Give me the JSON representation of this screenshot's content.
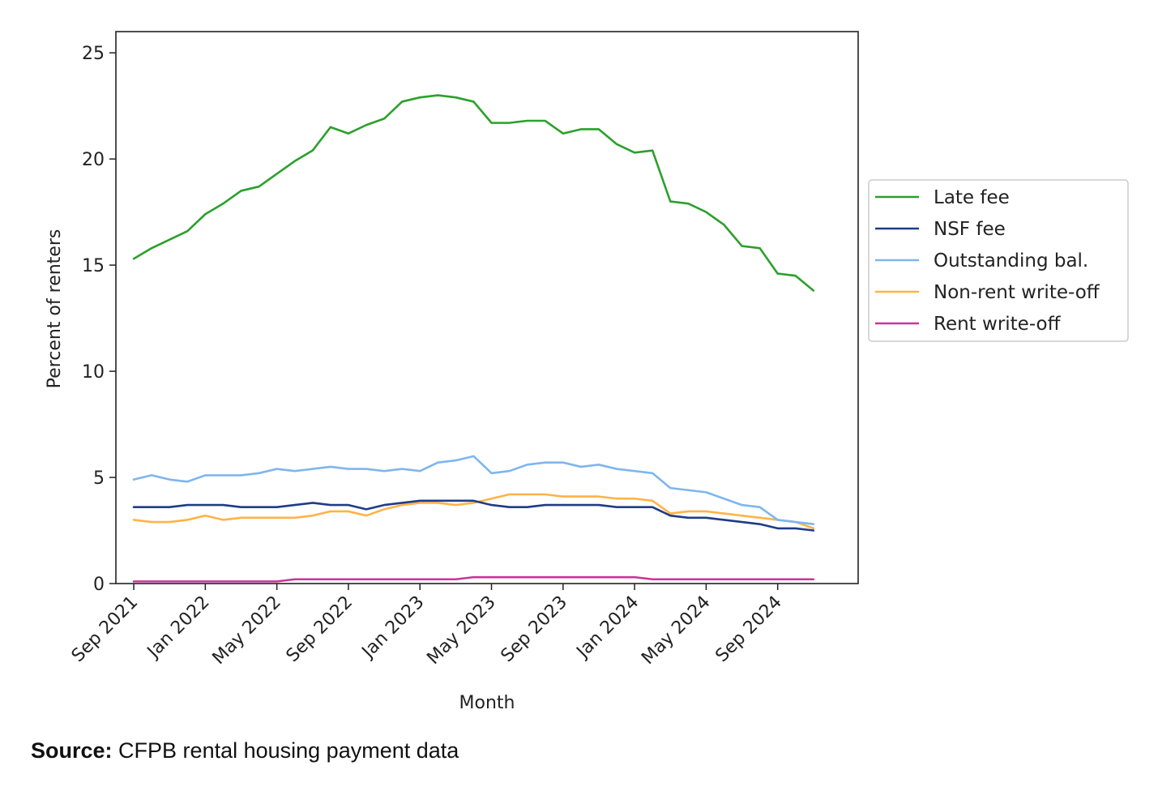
{
  "chart_data": {
    "type": "line",
    "xlabel": "Month",
    "ylabel": "Percent of renters",
    "ylim": [
      0,
      26
    ],
    "yticks": [
      0,
      5,
      10,
      15,
      20,
      25
    ],
    "x_range": [
      -1,
      40.5
    ],
    "x_tick_positions": [
      0,
      4,
      8,
      12,
      16,
      20,
      24,
      28,
      32,
      36
    ],
    "x_tick_labels": [
      "Sep 2021",
      "Jan 2022",
      "May 2022",
      "Sep 2022",
      "Jan 2023",
      "May 2023",
      "Sep 2023",
      "Jan 2024",
      "May 2024",
      "Sep 2024"
    ],
    "legend_position": "outside-right",
    "series": [
      {
        "name": "Late fee",
        "color": "#2ca02c",
        "values": [
          15.3,
          15.8,
          16.2,
          16.6,
          17.4,
          17.9,
          18.5,
          18.7,
          19.3,
          19.9,
          20.4,
          21.5,
          21.2,
          21.6,
          21.9,
          22.7,
          22.9,
          23.0,
          22.9,
          22.7,
          21.7,
          21.7,
          21.8,
          21.8,
          21.2,
          21.4,
          21.4,
          20.7,
          20.3,
          20.4,
          18.0,
          17.9,
          17.5,
          16.9,
          15.9,
          15.8,
          14.6,
          14.5,
          13.8
        ]
      },
      {
        "name": "NSF fee",
        "color": "#1f3c88",
        "values": [
          3.6,
          3.6,
          3.6,
          3.7,
          3.7,
          3.7,
          3.6,
          3.6,
          3.6,
          3.7,
          3.8,
          3.7,
          3.7,
          3.5,
          3.7,
          3.8,
          3.9,
          3.9,
          3.9,
          3.9,
          3.7,
          3.6,
          3.6,
          3.7,
          3.7,
          3.7,
          3.7,
          3.6,
          3.6,
          3.6,
          3.2,
          3.1,
          3.1,
          3.0,
          2.9,
          2.8,
          2.6,
          2.6,
          2.5
        ]
      },
      {
        "name": "Outstanding bal.",
        "color": "#7eb6ee",
        "values": [
          4.9,
          5.1,
          4.9,
          4.8,
          5.1,
          5.1,
          5.1,
          5.2,
          5.4,
          5.3,
          5.4,
          5.5,
          5.4,
          5.4,
          5.3,
          5.4,
          5.3,
          5.7,
          5.8,
          6.0,
          5.2,
          5.3,
          5.6,
          5.7,
          5.7,
          5.5,
          5.6,
          5.4,
          5.3,
          5.2,
          4.5,
          4.4,
          4.3,
          4.0,
          3.7,
          3.6,
          3.0,
          2.9,
          2.8
        ]
      },
      {
        "name": "Non-rent write-off",
        "color": "#ffb347",
        "values": [
          3.0,
          2.9,
          2.9,
          3.0,
          3.2,
          3.0,
          3.1,
          3.1,
          3.1,
          3.1,
          3.2,
          3.4,
          3.4,
          3.2,
          3.5,
          3.7,
          3.8,
          3.8,
          3.7,
          3.8,
          4.0,
          4.2,
          4.2,
          4.2,
          4.1,
          4.1,
          4.1,
          4.0,
          4.0,
          3.9,
          3.3,
          3.4,
          3.4,
          3.3,
          3.2,
          3.1,
          3.0,
          2.9,
          2.6
        ]
      },
      {
        "name": "Rent write-off",
        "color": "#cc3399",
        "values": [
          0.1,
          0.1,
          0.1,
          0.1,
          0.1,
          0.1,
          0.1,
          0.1,
          0.1,
          0.2,
          0.2,
          0.2,
          0.2,
          0.2,
          0.2,
          0.2,
          0.2,
          0.2,
          0.2,
          0.3,
          0.3,
          0.3,
          0.3,
          0.3,
          0.3,
          0.3,
          0.3,
          0.3,
          0.3,
          0.2,
          0.2,
          0.2,
          0.2,
          0.2,
          0.2,
          0.2,
          0.2,
          0.2,
          0.2
        ]
      }
    ]
  },
  "source": {
    "label": "Source:",
    "text": "CFPB rental housing payment data"
  }
}
